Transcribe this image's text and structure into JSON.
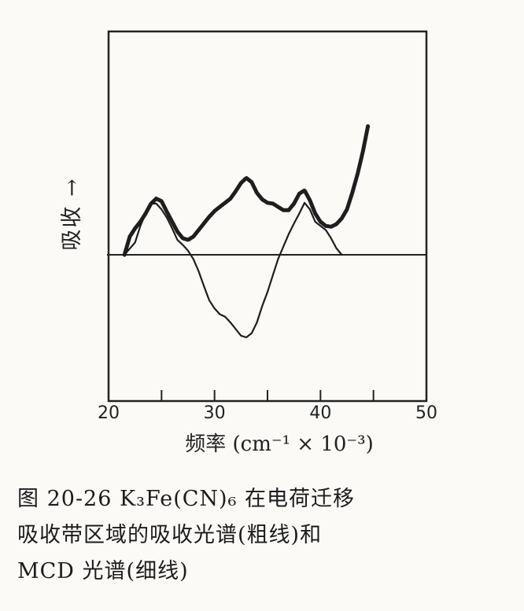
{
  "chart_data": {
    "type": "line",
    "xlabel": "频率 (cm⁻¹ × 10⁻³)",
    "ylabel": "吸收 →",
    "xlim": [
      20,
      50
    ],
    "x_ticks": [
      "20",
      "30",
      "40",
      "50"
    ],
    "grid": false,
    "series": [
      {
        "name": "吸收光谱（粗线）",
        "style": "thick",
        "x": [
          21.5,
          22.0,
          22.5,
          23.0,
          23.5,
          24.0,
          24.5,
          25.0,
          25.5,
          26.0,
          26.5,
          27.0,
          27.5,
          28.0,
          28.5,
          29.0,
          29.5,
          30.0,
          30.5,
          31.0,
          31.5,
          32.0,
          32.5,
          33.0,
          33.5,
          34.0,
          34.5,
          35.0,
          35.5,
          36.0,
          36.5,
          37.0,
          37.5,
          38.0,
          38.5,
          39.0,
          39.5,
          40.0,
          40.5,
          41.0,
          41.5,
          42.0,
          42.5,
          43.0,
          43.5,
          44.0,
          44.5
        ],
        "y": [
          0.0,
          0.22,
          0.32,
          0.4,
          0.5,
          0.62,
          0.68,
          0.65,
          0.52,
          0.4,
          0.28,
          0.2,
          0.18,
          0.22,
          0.3,
          0.38,
          0.46,
          0.53,
          0.58,
          0.63,
          0.68,
          0.77,
          0.87,
          0.93,
          0.88,
          0.75,
          0.67,
          0.63,
          0.62,
          0.58,
          0.54,
          0.54,
          0.62,
          0.74,
          0.78,
          0.66,
          0.5,
          0.4,
          0.35,
          0.34,
          0.37,
          0.44,
          0.55,
          0.75,
          0.98,
          1.25,
          1.57
        ]
      },
      {
        "name": "MCD光谱（细线）",
        "style": "thin",
        "x": [
          21.5,
          22.5,
          23.0,
          23.5,
          24.0,
          24.5,
          25.0,
          25.5,
          26.0,
          26.5,
          27.0,
          27.5,
          28.0,
          28.5,
          29.0,
          29.5,
          30.0,
          30.5,
          31.0,
          31.5,
          32.0,
          32.5,
          33.0,
          33.5,
          34.0,
          34.5,
          35.0,
          35.5,
          36.0,
          36.5,
          37.0,
          37.5,
          38.0,
          38.5,
          39.0,
          39.5,
          40.0,
          40.5,
          41.0,
          41.5,
          42.0
        ],
        "y": [
          0.0,
          0.15,
          0.35,
          0.5,
          0.62,
          0.62,
          0.55,
          0.45,
          0.32,
          0.18,
          0.12,
          0.05,
          -0.05,
          -0.2,
          -0.38,
          -0.55,
          -0.65,
          -0.72,
          -0.75,
          -0.82,
          -0.9,
          -0.98,
          -1.0,
          -0.95,
          -0.82,
          -0.62,
          -0.45,
          -0.25,
          -0.05,
          0.1,
          0.25,
          0.38,
          0.5,
          0.63,
          0.55,
          0.4,
          0.35,
          0.3,
          0.2,
          0.08,
          0.0
        ]
      }
    ]
  },
  "caption": {
    "line1": "图 20-26   K₃Fe(CN)₆ 在电荷迁移",
    "line2": "吸收带区域的吸收光谱(粗线)和",
    "line3": "MCD 光谱(细线)"
  }
}
